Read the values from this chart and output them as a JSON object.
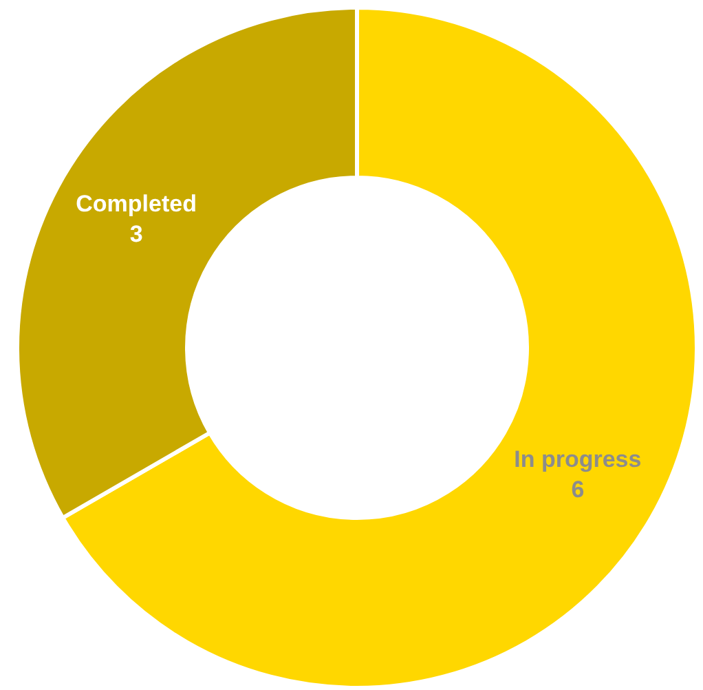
{
  "chart_data": {
    "type": "donut",
    "categories": [
      "In progress",
      "Completed"
    ],
    "values": [
      6,
      3
    ],
    "colors": [
      "#ffd700",
      "#c8a900"
    ],
    "data_labels": true,
    "legend": false
  }
}
